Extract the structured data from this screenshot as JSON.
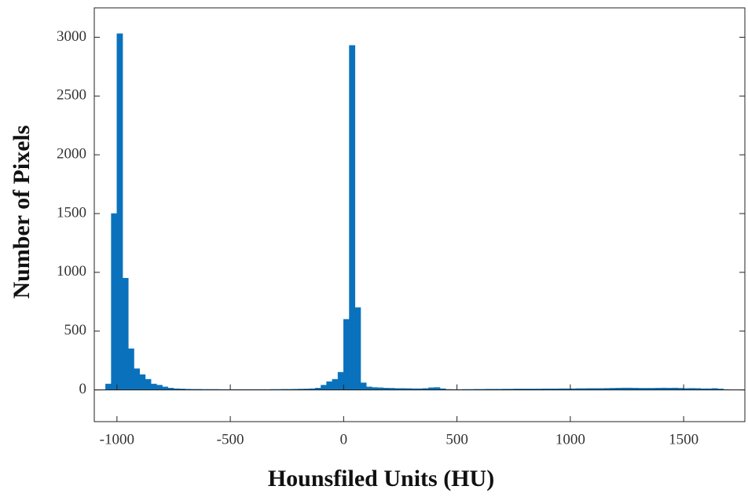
{
  "chart_data": {
    "type": "histogram",
    "xlabel": "Hounsfiled Units (HU)",
    "ylabel": "Number of Pixels",
    "color": "#0a72bd",
    "xlim": [
      -1100,
      1770
    ],
    "ylim": [
      -270,
      3250
    ],
    "xticks": [
      -1000,
      -500,
      0,
      500,
      1000,
      1500
    ],
    "yticks": [
      0,
      500,
      1000,
      1500,
      2000,
      2500,
      3000
    ],
    "bins": [
      -1050,
      -1025,
      -1000,
      -975,
      -950,
      -925,
      -900,
      -875,
      -850,
      -825,
      -800,
      -775,
      -750,
      -725,
      -700,
      -675,
      -650,
      -625,
      -600,
      -575,
      -550,
      -525,
      -500,
      -475,
      -450,
      -425,
      -400,
      -375,
      -350,
      -325,
      -300,
      -275,
      -250,
      -225,
      -200,
      -175,
      -150,
      -125,
      -100,
      -75,
      -50,
      -25,
      0,
      25,
      50,
      75,
      100,
      125,
      150,
      175,
      200,
      225,
      250,
      275,
      300,
      325,
      350,
      375,
      400,
      425,
      450,
      475,
      500,
      525,
      550,
      575,
      600,
      625,
      650,
      675,
      700,
      725,
      750,
      775,
      800,
      825,
      850,
      875,
      900,
      925,
      950,
      975,
      1000,
      1025,
      1050,
      1075,
      1100,
      1125,
      1150,
      1175,
      1200,
      1225,
      1250,
      1275,
      1300,
      1325,
      1350,
      1375,
      1400,
      1425,
      1450,
      1475,
      1500,
      1525,
      1550,
      1575,
      1600,
      1625,
      1650,
      1675,
      1700
    ],
    "values": [
      50,
      1500,
      3030,
      950,
      350,
      180,
      130,
      90,
      50,
      40,
      25,
      15,
      10,
      8,
      6,
      5,
      5,
      4,
      4,
      4,
      3,
      3,
      3,
      3,
      3,
      3,
      3,
      3,
      3,
      4,
      4,
      5,
      5,
      6,
      7,
      8,
      10,
      15,
      40,
      70,
      90,
      150,
      600,
      2930,
      700,
      60,
      25,
      20,
      18,
      15,
      14,
      12,
      12,
      11,
      10,
      10,
      12,
      18,
      20,
      10,
      4,
      3,
      3,
      4,
      4,
      5,
      5,
      6,
      6,
      6,
      7,
      7,
      8,
      8,
      8,
      8,
      8,
      9,
      9,
      9,
      10,
      10,
      10,
      11,
      11,
      12,
      12,
      12,
      13,
      14,
      15,
      16,
      16,
      15,
      14,
      14,
      14,
      15,
      16,
      15,
      16,
      14,
      12,
      13,
      12,
      10,
      10,
      12,
      8,
      3
    ]
  }
}
